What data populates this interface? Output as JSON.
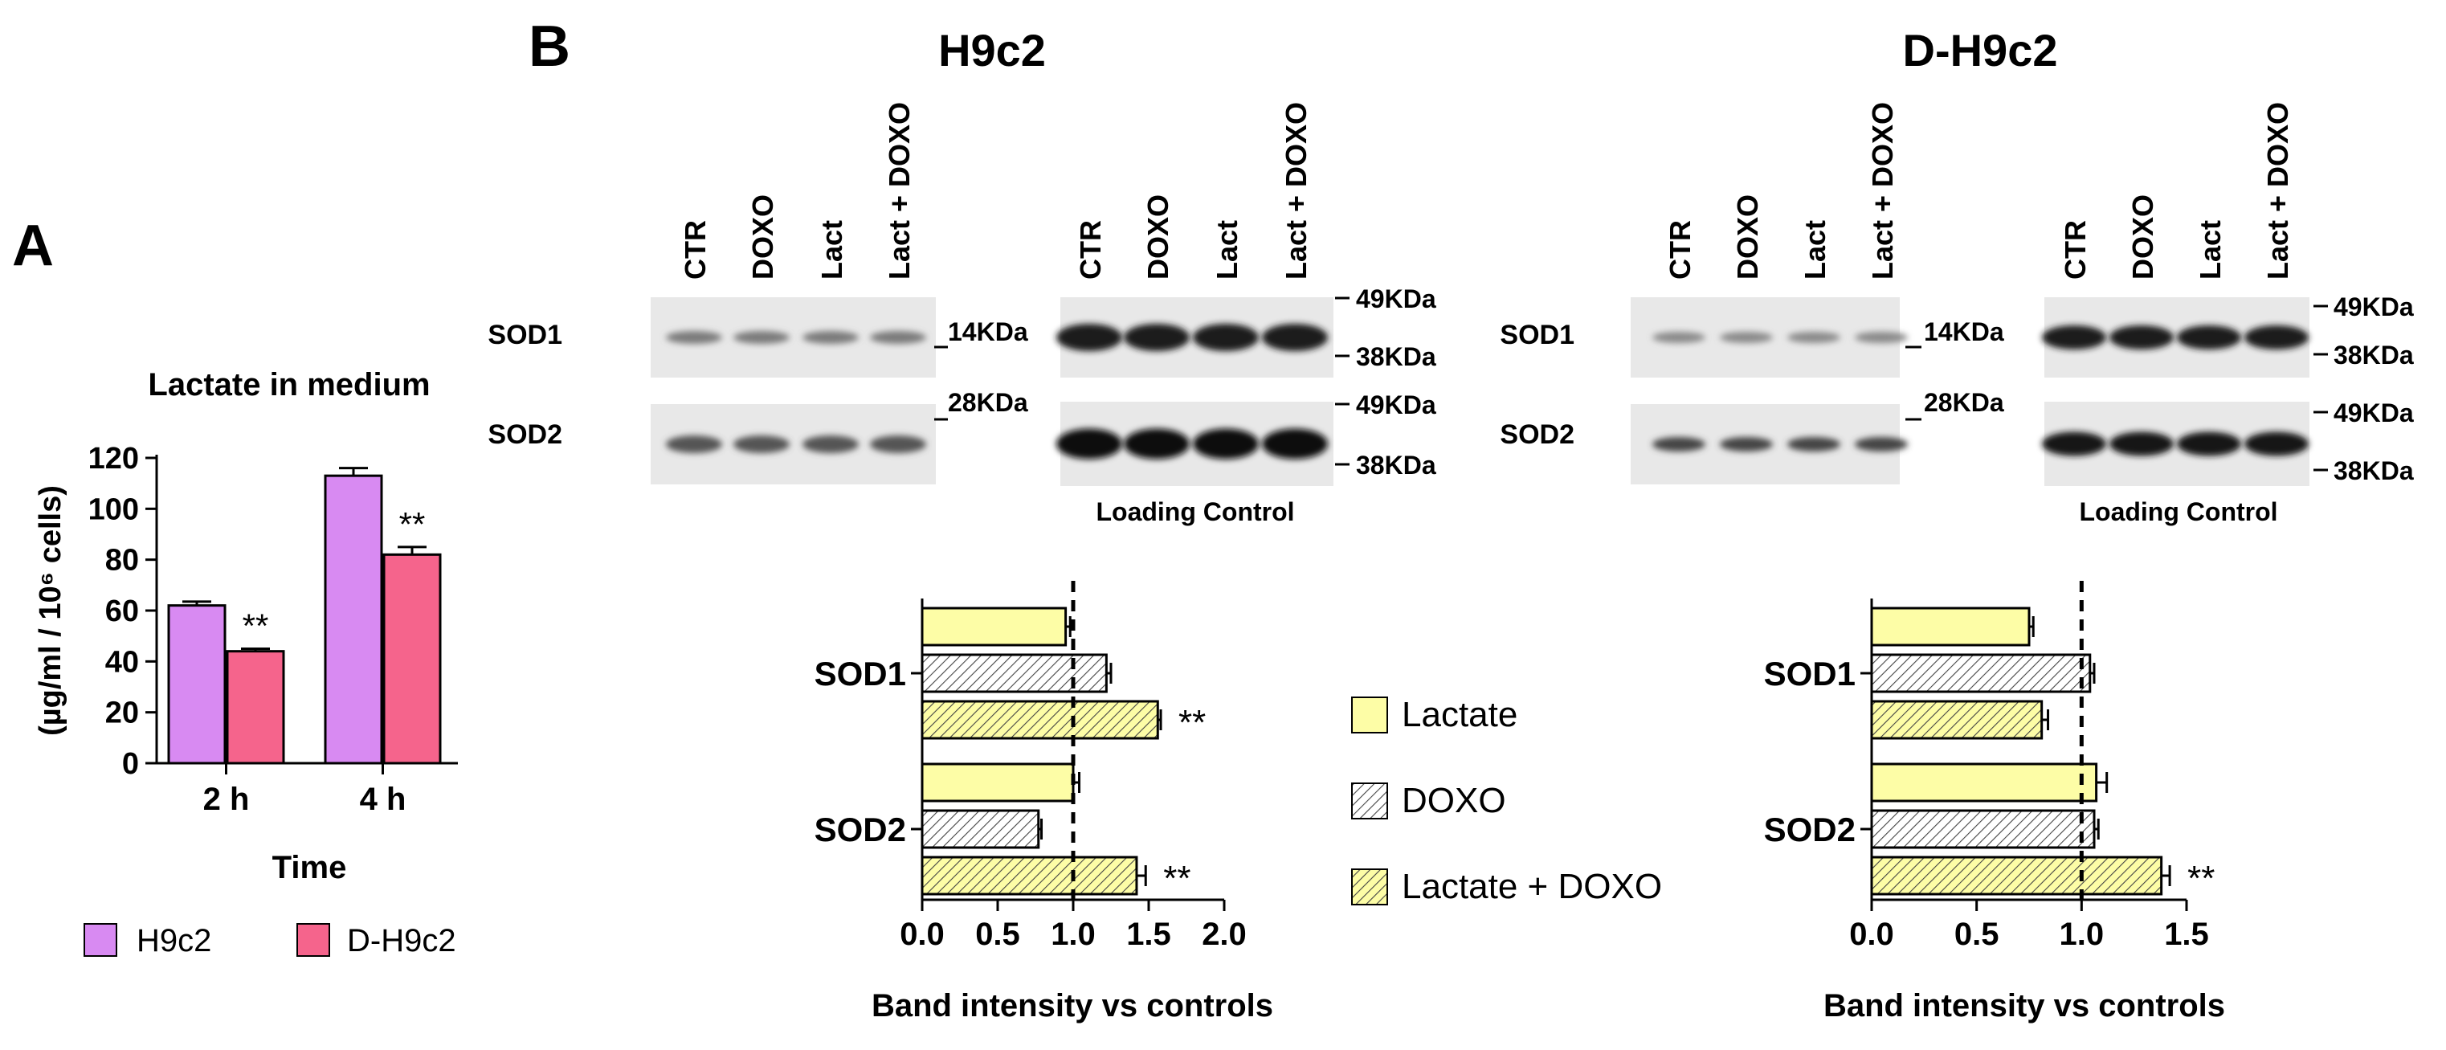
{
  "panels": {
    "A": "A",
    "B": "B"
  },
  "chart_data": [
    {
      "type": "bar",
      "title": "Lactate in medium",
      "xlabel": "Time",
      "ylabel": "(µg/ml / 10⁶ cells)",
      "categories": [
        "2 h",
        "4 h"
      ],
      "ylim": [
        0,
        120
      ],
      "yticks": [
        "0",
        "20",
        "40",
        "60",
        "80",
        "100",
        "120"
      ],
      "series": [
        {
          "name": "H9c2",
          "values": [
            62,
            113
          ],
          "errors": [
            1.5,
            3
          ],
          "color": "#d88af2"
        },
        {
          "name": "D-H9c2",
          "values": [
            44,
            82
          ],
          "errors": [
            1,
            3
          ],
          "color": "#f5648c"
        }
      ],
      "significance": [
        "**",
        "**"
      ],
      "legend": "bottom"
    },
    {
      "type": "bar",
      "orientation": "horizontal",
      "title": "H9c2",
      "xlabel": "Band intensity vs controls",
      "categories": [
        "SOD1",
        "SOD2"
      ],
      "xlim": [
        0,
        2.0
      ],
      "xticks": [
        "0.0",
        "0.5",
        "1.0",
        "1.5",
        "2.0"
      ],
      "reference_line": 1.0,
      "series": [
        {
          "name": "Lactate",
          "values": [
            0.95,
            1.0
          ],
          "errors": [
            0.03,
            0.04
          ]
        },
        {
          "name": "DOXO",
          "values": [
            1.22,
            0.77
          ],
          "errors": [
            0.03,
            0.02
          ]
        },
        {
          "name": "Lactate + DOXO",
          "values": [
            1.56,
            1.42
          ],
          "errors": [
            0.02,
            0.06
          ]
        }
      ],
      "significance": [
        [
          "",
          "",
          "**"
        ],
        [
          "",
          "",
          "**"
        ]
      ]
    },
    {
      "type": "bar",
      "orientation": "horizontal",
      "title": "D-H9c2",
      "xlabel": "Band intensity vs controls",
      "categories": [
        "SOD1",
        "SOD2"
      ],
      "xlim": [
        0,
        1.5
      ],
      "xticks": [
        "0.0",
        "0.5",
        "1.0",
        "1.5"
      ],
      "reference_line": 1.0,
      "series": [
        {
          "name": "Lactate",
          "values": [
            0.75,
            1.07
          ],
          "errors": [
            0.02,
            0.05
          ]
        },
        {
          "name": "DOXO",
          "values": [
            1.04,
            1.06
          ],
          "errors": [
            0.02,
            0.02
          ]
        },
        {
          "name": "Lactate + DOXO",
          "values": [
            0.81,
            1.38
          ],
          "errors": [
            0.03,
            0.04
          ]
        }
      ],
      "significance": [
        [
          "",
          "",
          ""
        ],
        [
          "",
          "",
          "**"
        ]
      ]
    }
  ],
  "legend_B": {
    "items": [
      "Lactate",
      "DOXO",
      "Lactate + DOXO"
    ],
    "colors": [
      "#fdfda6",
      "#ffffff",
      "#fdfda6"
    ]
  },
  "blots": {
    "lanes": [
      "CTR",
      "DOXO",
      "Lact",
      "Lact + DOXO"
    ],
    "rows": [
      "SOD1",
      "SOD2"
    ],
    "h9c2_sod_markers": [
      "14KDa",
      "28KDa"
    ],
    "d_sod_markers": [
      "14KDa",
      "28KDa"
    ],
    "loading_markers": [
      "49KDa",
      "38KDa",
      "49KDa",
      "38KDa"
    ],
    "loading_label": "Loading Control"
  }
}
